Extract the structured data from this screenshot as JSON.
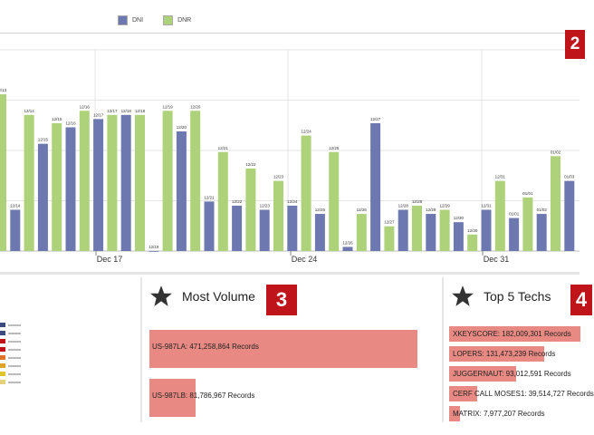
{
  "legend": [
    {
      "label": "DNI",
      "color": "#6e78b0"
    },
    {
      "label": "DNR",
      "color": "#aed27a"
    }
  ],
  "markers": {
    "chart": "2",
    "volume": "3",
    "techs": "4"
  },
  "chart_data": {
    "type": "bar",
    "series_colors": {
      "DNI": "#6e78b0",
      "DNR": "#aed27a"
    },
    "y_range": [
      0,
      100
    ],
    "grid": true,
    "x_axis_labels": [
      "Dec 17",
      "Dec 24",
      "Dec 31"
    ],
    "bars": [
      {
        "series": "DNR",
        "label": "12/13",
        "value": 38
      },
      {
        "series": "DNI",
        "label": "12/14",
        "value": 10
      },
      {
        "series": "DNR",
        "label": "12/14",
        "value": 33
      },
      {
        "series": "DNI",
        "label": "12/15",
        "value": 26
      },
      {
        "series": "DNR",
        "label": "12/15",
        "value": 31
      },
      {
        "series": "DNI",
        "label": "12/16",
        "value": 30
      },
      {
        "series": "DNR",
        "label": "12/16",
        "value": 34
      },
      {
        "series": "DNI",
        "label": "12/17",
        "value": 32
      },
      {
        "series": "DNR",
        "label": "12/17",
        "value": 33
      },
      {
        "series": "DNI",
        "label": "12/18",
        "value": 33
      },
      {
        "series": "DNR",
        "label": "12/18",
        "value": 33
      },
      {
        "series": "DNI",
        "label": "12/19",
        "value": 0
      },
      {
        "series": "DNR",
        "label": "12/19",
        "value": 34
      },
      {
        "series": "DNI",
        "label": "12/20",
        "value": 29
      },
      {
        "series": "DNR",
        "label": "12/20",
        "value": 34
      },
      {
        "series": "DNI",
        "label": "12/21",
        "value": 12
      },
      {
        "series": "DNR",
        "label": "12/21",
        "value": 24
      },
      {
        "series": "DNI",
        "label": "12/22",
        "value": 11
      },
      {
        "series": "DNR",
        "label": "12/22",
        "value": 20
      },
      {
        "series": "DNI",
        "label": "12/23",
        "value": 10
      },
      {
        "series": "DNR",
        "label": "12/23",
        "value": 17
      },
      {
        "series": "DNI",
        "label": "12/24",
        "value": 11
      },
      {
        "series": "DNR",
        "label": "12/24",
        "value": 28
      },
      {
        "series": "DNI",
        "label": "12/25",
        "value": 9
      },
      {
        "series": "DNR",
        "label": "12/25",
        "value": 24
      },
      {
        "series": "DNI",
        "label": "12/26",
        "value": 1
      },
      {
        "series": "DNR",
        "label": "12/26",
        "value": 9
      },
      {
        "series": "DNI",
        "label": "12/27",
        "value": 31
      },
      {
        "series": "DNR",
        "label": "12/27",
        "value": 6
      },
      {
        "series": "DNI",
        "label": "12/28",
        "value": 10
      },
      {
        "series": "DNR",
        "label": "12/28",
        "value": 11
      },
      {
        "series": "DNI",
        "label": "12/29",
        "value": 9
      },
      {
        "series": "DNR",
        "label": "12/29",
        "value": 10
      },
      {
        "series": "DNI",
        "label": "12/30",
        "value": 7
      },
      {
        "series": "DNR",
        "label": "12/30",
        "value": 4
      },
      {
        "series": "DNI",
        "label": "12/31",
        "value": 10
      },
      {
        "series": "DNR",
        "label": "12/31",
        "value": 17
      },
      {
        "series": "DNI",
        "label": "01/01",
        "value": 8
      },
      {
        "series": "DNR",
        "label": "01/01",
        "value": 13
      },
      {
        "series": "DNI",
        "label": "01/02",
        "value": 9
      },
      {
        "series": "DNR",
        "label": "01/02",
        "value": 23
      },
      {
        "series": "DNI",
        "label": "01/03",
        "value": 17
      }
    ]
  },
  "volume_panel": {
    "title": "Most Volume",
    "items": [
      {
        "label": "US-987LA: 471,258,864 Records",
        "value": 471258864
      },
      {
        "label": "US-987LB: 81,786,967 Records",
        "value": 81786967
      }
    ]
  },
  "techs_panel": {
    "title": "Top 5 Techs",
    "items": [
      {
        "label": "XKEYSCORE: 182,009,301 Records",
        "value": 182009301
      },
      {
        "label": "LOPERS: 131,473,239 Records",
        "value": 131473239
      },
      {
        "label": "JUGGERNAUT: 93,012,591 Records",
        "value": 93012591
      },
      {
        "label": "CERF CALL MOSES1: 39,514,727 Records",
        "value": 39514727
      },
      {
        "label": "MATRIX: 7,977,207 Records",
        "value": 7977207
      }
    ]
  },
  "mini_legend": [
    {
      "color": "#3b4a80",
      "checked": true
    },
    {
      "color": "#3b4a80",
      "checked": true
    },
    {
      "color": "#c0141b",
      "checked": true
    },
    {
      "color": "#c0141b",
      "checked": true
    },
    {
      "color": "#e0742a",
      "checked": true
    },
    {
      "color": "#e0a32a",
      "checked": true
    },
    {
      "color": "#e0c42a",
      "checked": true
    },
    {
      "color": "#e6d27a",
      "checked": true
    }
  ]
}
